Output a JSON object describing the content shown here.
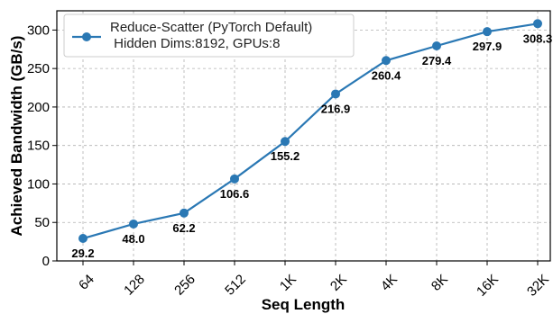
{
  "chart_data": {
    "type": "line",
    "categories": [
      "64",
      "128",
      "256",
      "512",
      "1K",
      "2K",
      "4K",
      "8K",
      "16K",
      "32K"
    ],
    "series": [
      {
        "name": "Reduce-Scatter (PyTorch Default)\n Hidden Dims:8192, GPUs:8",
        "values": [
          29.2,
          48.0,
          62.2,
          106.6,
          155.2,
          216.9,
          260.4,
          279.4,
          297.9,
          308.3
        ],
        "labels": [
          "29.2",
          "48.0",
          "62.2",
          "106.6",
          "155.2",
          "216.9",
          "260.4",
          "279.4",
          "297.9",
          "308.3"
        ]
      }
    ],
    "xlabel": "Seq Length",
    "ylabel": "Achieved Bandwidth (GB/s)",
    "ylim": [
      0,
      325
    ],
    "yticks": [
      0,
      50,
      100,
      150,
      200,
      250,
      300
    ],
    "grid": true,
    "legend_position": "top-left",
    "colors": {
      "line": "#2a78b4",
      "grid": "#b0b0b0"
    }
  }
}
